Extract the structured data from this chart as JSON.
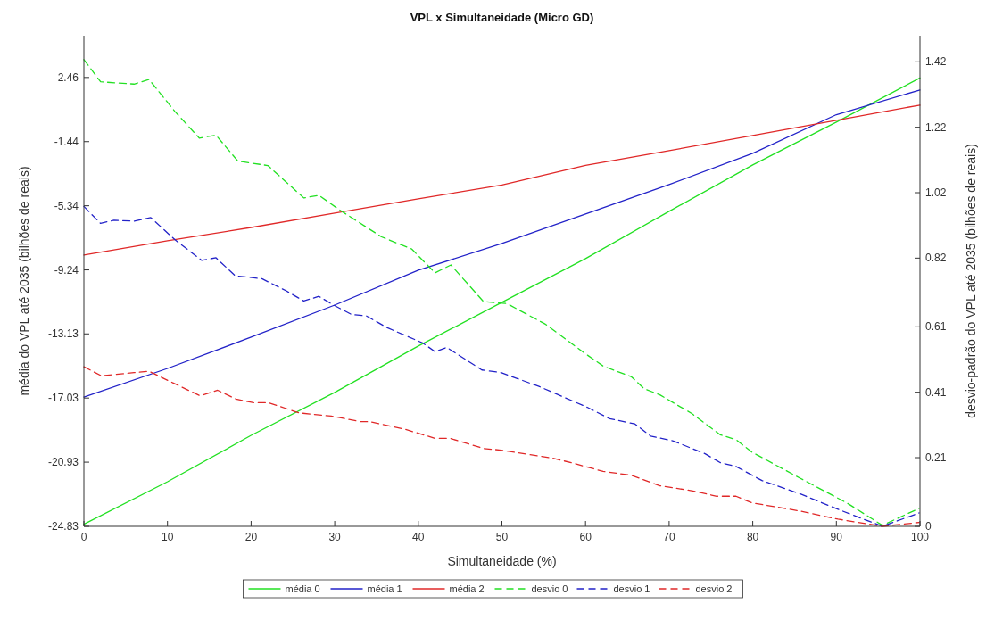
{
  "chart_data": {
    "type": "line",
    "title": "VPL x Simultaneidade (Micro GD)",
    "xlabel": "Simultaneidade (%)",
    "ylabel": "média do VPL até 2035 (bilhões de reais)",
    "y2label": "desvio-padrão do VPL até 2035 (bilhões de reais)",
    "xlim": [
      0,
      100
    ],
    "xticks": [
      0,
      10,
      20,
      30,
      40,
      50,
      60,
      70,
      80,
      90,
      100
    ],
    "ylim": [
      -24.83,
      5.0
    ],
    "yticks": [
      -24.83,
      -20.93,
      -17.03,
      -13.13,
      -9.24,
      -5.34,
      -1.44,
      2.46
    ],
    "y2lim": [
      0,
      1.5
    ],
    "y2ticks": [
      0,
      0.21,
      0.41,
      0.61,
      0.82,
      1.02,
      1.22,
      1.42
    ],
    "grid": false,
    "legend": "bottom",
    "series": [
      {
        "name": "média 0",
        "color": "#22e022",
        "line_style": "solid",
        "x": [
          0,
          10,
          20,
          30,
          40,
          50,
          60,
          70,
          80,
          90,
          100
        ],
        "values": [
          -24.7,
          -22.12,
          -19.3,
          -16.69,
          -13.87,
          -11.21,
          -8.55,
          -5.68,
          -2.86,
          -0.25,
          2.43
        ]
      },
      {
        "name": "média 1",
        "color": "#2222c8",
        "line_style": "solid",
        "x": [
          0,
          10,
          20,
          30,
          40,
          50,
          60,
          70,
          80,
          90,
          100
        ],
        "values": [
          -16.97,
          -15.23,
          -13.33,
          -11.38,
          -9.26,
          -7.63,
          -5.84,
          -4.05,
          -2.15,
          0.2,
          1.7
        ]
      },
      {
        "name": "média 2",
        "color": "#e02828",
        "line_style": "solid",
        "x": [
          0,
          10,
          20,
          30,
          40,
          50,
          60,
          70,
          80,
          90,
          100
        ],
        "values": [
          -8.34,
          -7.47,
          -6.66,
          -5.79,
          -4.92,
          -4.08,
          -2.88,
          -1.99,
          -1.07,
          -0.14,
          0.78
        ]
      },
      {
        "name": "desvio 0",
        "color": "#22e022",
        "line_style": "dashed",
        "axis": "y2",
        "x": [
          0,
          2,
          6,
          7.8,
          10.9,
          13.8,
          15.8,
          18.4,
          22,
          26.3,
          28.1,
          30.6,
          35.6,
          39.2,
          42,
          43.9,
          47.8,
          50.6,
          55.2,
          59.8,
          62.1,
          65.5,
          67,
          68.9,
          72.7,
          76.1,
          78,
          79.9,
          85.6,
          91.3,
          95.5,
          99.9
        ],
        "values": [
          1.427,
          1.359,
          1.352,
          1.366,
          1.268,
          1.187,
          1.196,
          1.117,
          1.103,
          1.004,
          1.012,
          0.967,
          0.885,
          0.848,
          0.775,
          0.799,
          0.687,
          0.681,
          0.618,
          0.531,
          0.49,
          0.457,
          0.421,
          0.402,
          0.345,
          0.28,
          0.265,
          0.227,
          0.148,
          0.071,
          0.003,
          0.055
        ]
      },
      {
        "name": "desvio 1",
        "color": "#2222c8",
        "line_style": "dashed",
        "axis": "y2",
        "x": [
          0,
          2,
          3.6,
          6,
          8,
          10.9,
          14.1,
          15.8,
          18.1,
          21.3,
          24.2,
          26.3,
          28.1,
          29.9,
          32,
          33.8,
          36.3,
          40.5,
          42,
          43.4,
          47.6,
          49.9,
          54.5,
          60.2,
          62.9,
          65.9,
          67.8,
          70.5,
          74.3,
          76.1,
          78,
          81.1,
          85.6,
          90.2,
          95.5,
          99.9
        ],
        "values": [
          0.978,
          0.926,
          0.936,
          0.933,
          0.944,
          0.876,
          0.813,
          0.821,
          0.766,
          0.757,
          0.72,
          0.689,
          0.703,
          0.676,
          0.648,
          0.643,
          0.607,
          0.561,
          0.534,
          0.547,
          0.478,
          0.47,
          0.427,
          0.364,
          0.329,
          0.313,
          0.276,
          0.261,
          0.222,
          0.195,
          0.183,
          0.14,
          0.1,
          0.052,
          0.0,
          0.041
        ]
      },
      {
        "name": "desvio 2",
        "color": "#e02828",
        "line_style": "dashed",
        "axis": "y2",
        "x": [
          0,
          2.1,
          6,
          7.8,
          10.7,
          13.9,
          16,
          18.2,
          20.3,
          22.1,
          25.7,
          29.6,
          33.1,
          34.2,
          38.5,
          42,
          43.8,
          47.8,
          49.9,
          56,
          58.7,
          62.1,
          65.5,
          68.9,
          72.7,
          75.7,
          78,
          79.9,
          85.6,
          90.2,
          95.5,
          99.9
        ],
        "values": [
          0.488,
          0.46,
          0.47,
          0.474,
          0.438,
          0.399,
          0.416,
          0.389,
          0.378,
          0.378,
          0.347,
          0.337,
          0.32,
          0.32,
          0.296,
          0.269,
          0.269,
          0.238,
          0.233,
          0.209,
          0.192,
          0.168,
          0.156,
          0.124,
          0.109,
          0.092,
          0.092,
          0.072,
          0.047,
          0.022,
          0.0,
          0.012
        ]
      }
    ]
  }
}
